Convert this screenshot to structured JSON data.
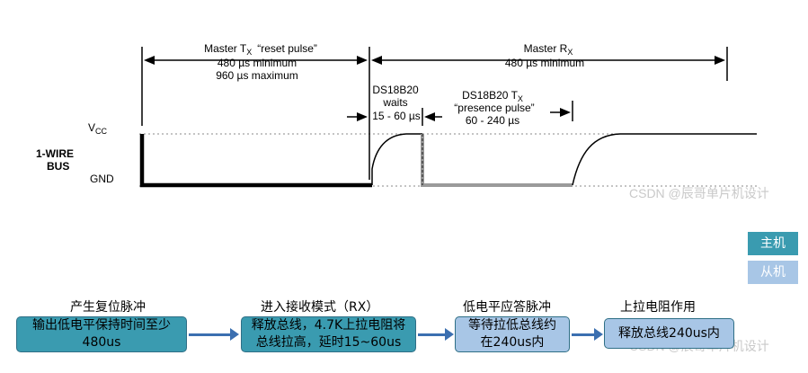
{
  "diagram": {
    "master_tx": {
      "name": "Master T",
      "sub": "X",
      "desc": "“reset pulse”",
      "line1": "480 µs minimum",
      "line2": "960 µs maximum"
    },
    "master_rx": {
      "name": "Master R",
      "sub": "X",
      "line1": "480 µs minimum"
    },
    "waits": {
      "line1": "DS18B20",
      "line2": "waits",
      "line3": "15 - 60 µs"
    },
    "presence": {
      "name": "DS18B20 T",
      "sub": "X",
      "line2": "“presence pulse”",
      "line3": "60 - 240 µs"
    },
    "vcc": {
      "main": "V",
      "sub": "CC"
    },
    "bus": {
      "line1": "1-WIRE",
      "line2": "BUS"
    },
    "gnd": "GND"
  },
  "legend": {
    "master": {
      "label": "主机",
      "color": "#3a9bb0"
    },
    "slave": {
      "label": "从机",
      "color": "#a8c6e6"
    }
  },
  "steps": [
    {
      "title": "产生复位脉冲",
      "line1": "输出低电平保持时间至少",
      "line2": "480us",
      "color": "#3a9bb0"
    },
    {
      "title": "进入接收模式（RX）",
      "line1": "释放总线，4.7K上拉电阻将",
      "line2": "总线拉高，延时15~60us",
      "color": "#3a9bb0"
    },
    {
      "title": "低电平应答脉冲",
      "line1": "等待拉低总线约",
      "line2": "在240us内",
      "color": "#a8c6e6"
    },
    {
      "title": "上拉电阻作用",
      "line1": "释放总线240us内",
      "line2": "",
      "color": "#a8c6e6"
    }
  ],
  "watermark": "CSDN @辰哥单片机设计"
}
